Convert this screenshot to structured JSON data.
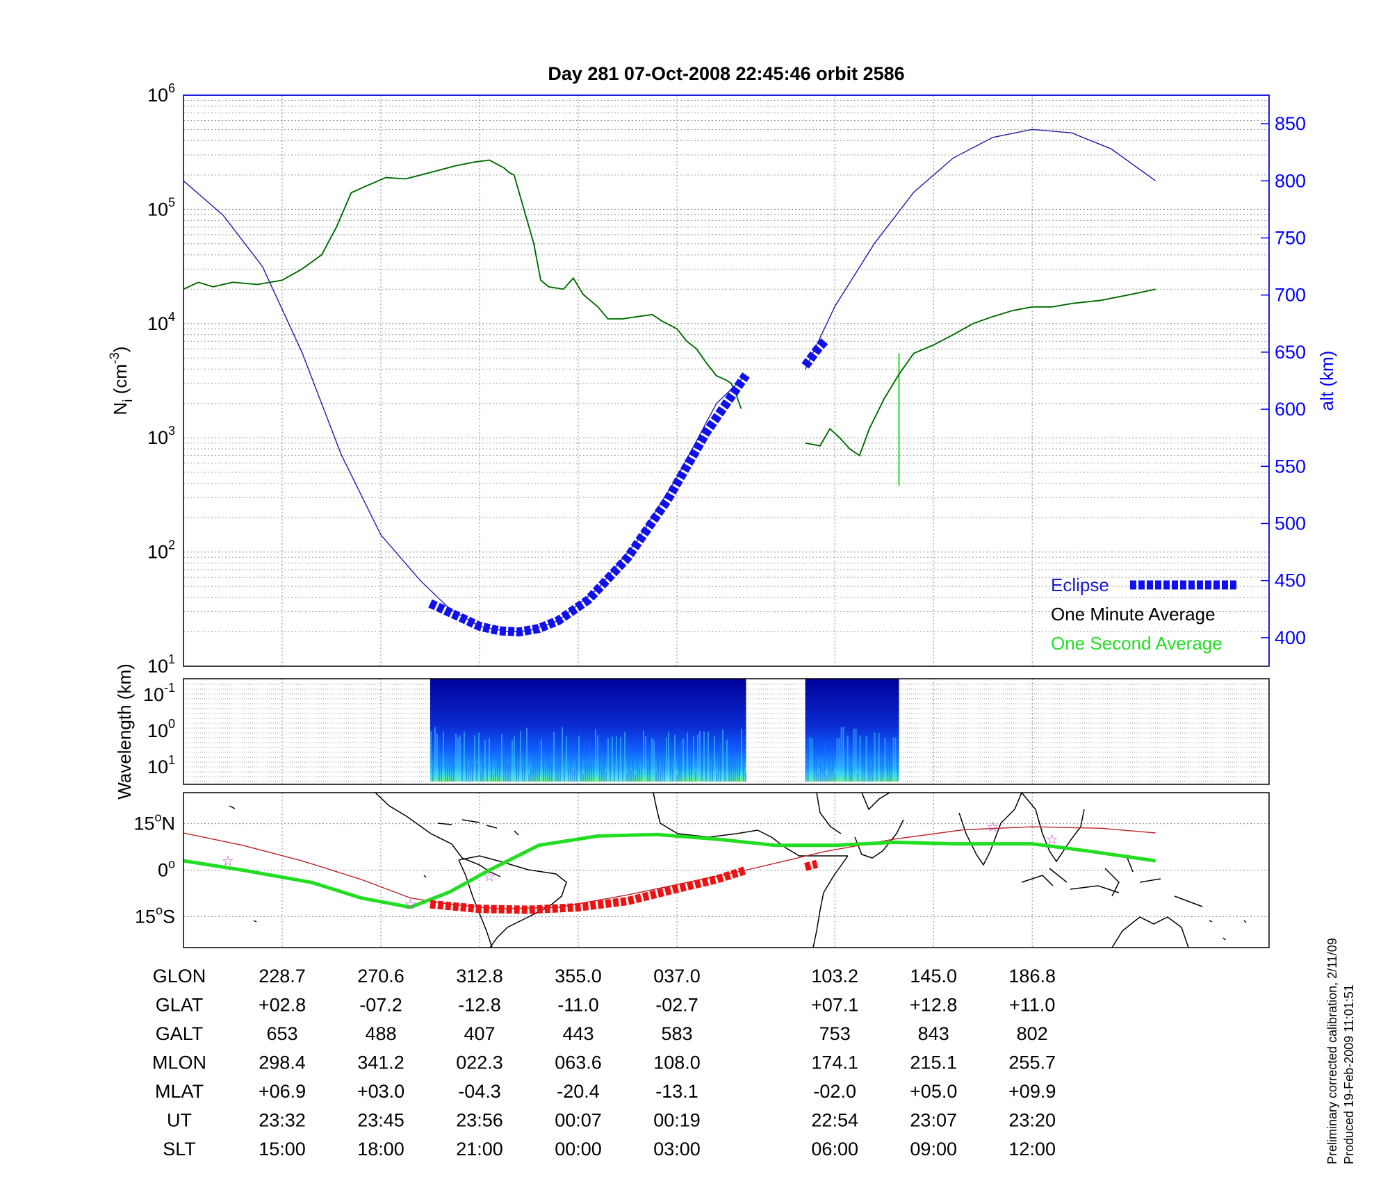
{
  "title": "Day 281  07-Oct-2008 22:45:46   orbit 2586",
  "colors": {
    "one_minute": "#0a5a0a",
    "one_second": "#22dd22",
    "altitude": "#1a1aaa",
    "eclipse": "#1010ee",
    "ground_track": "#22dd22",
    "magnetic_equator": "#bb2222",
    "ground_track_eclipse": "#ee1111",
    "star": "#cc33cc"
  },
  "chart_data": [
    {
      "type": "line",
      "ylabel": "N",
      "ylabel_sub": "i",
      "ylabel_unit": "(cm",
      "ylabel_sup": "-3",
      "ylabel_close": ")",
      "yscale": "log",
      "ylim": [
        10,
        1000000
      ],
      "y_ticks": [
        {
          "base": "10",
          "exp": "1"
        },
        {
          "base": "10",
          "exp": "2"
        },
        {
          "base": "10",
          "exp": "3"
        },
        {
          "base": "10",
          "exp": "4"
        },
        {
          "base": "10",
          "exp": "5"
        },
        {
          "base": "10",
          "exp": "6"
        }
      ],
      "y2label": "alt (km)",
      "y2lim": [
        375,
        875
      ],
      "y2_ticks": [
        "400",
        "450",
        "500",
        "550",
        "600",
        "650",
        "700",
        "750",
        "800",
        "850"
      ],
      "grid": true,
      "legend_position": "bottom-right",
      "legend": {
        "eclipse": "Eclipse",
        "one_minute": "One Minute Average",
        "one_second": "One Second Average"
      },
      "density_segments": [
        [
          [
            0,
            20000
          ],
          [
            0.15,
            23000
          ],
          [
            0.3,
            21000
          ],
          [
            0.5,
            23000
          ],
          [
            0.75,
            22000
          ],
          [
            1,
            24000
          ],
          [
            1.2,
            30000
          ],
          [
            1.4,
            40000
          ],
          [
            1.55,
            70000
          ],
          [
            1.7,
            140000
          ],
          [
            1.85,
            160000
          ],
          [
            2.05,
            190000
          ],
          [
            2.25,
            185000
          ],
          [
            2.5,
            210000
          ],
          [
            2.75,
            240000
          ],
          [
            2.95,
            260000
          ],
          [
            3.1,
            270000
          ],
          [
            3.25,
            230000
          ],
          [
            3.3,
            210000
          ],
          [
            3.35,
            200000
          ],
          [
            3.45,
            100000
          ],
          [
            3.55,
            50000
          ],
          [
            3.62,
            24000
          ],
          [
            3.7,
            21000
          ],
          [
            3.85,
            20000
          ],
          [
            3.95,
            25000
          ],
          [
            4.05,
            18000
          ],
          [
            4.2,
            14000
          ],
          [
            4.3,
            11000
          ],
          [
            4.45,
            11000
          ],
          [
            4.6,
            11500
          ],
          [
            4.75,
            12000
          ],
          [
            4.85,
            10500
          ],
          [
            5.0,
            9000
          ],
          [
            5.1,
            7000
          ],
          [
            5.2,
            6000
          ],
          [
            5.3,
            4500
          ],
          [
            5.4,
            3500
          ],
          [
            5.5,
            3200
          ],
          [
            5.55,
            3000
          ],
          [
            5.6,
            2400
          ],
          [
            5.65,
            1800
          ]
        ],
        [
          [
            6.3,
            900
          ],
          [
            6.45,
            850
          ],
          [
            6.55,
            1200
          ],
          [
            6.65,
            1000
          ],
          [
            6.75,
            800
          ],
          [
            6.85,
            700
          ],
          [
            6.95,
            1200
          ],
          [
            7.1,
            2200
          ],
          [
            7.25,
            3600
          ],
          [
            7.4,
            5500
          ],
          [
            7.6,
            6500
          ],
          [
            7.8,
            8000
          ],
          [
            8.0,
            10000
          ],
          [
            8.2,
            11500
          ],
          [
            8.4,
            13000
          ],
          [
            8.6,
            14000
          ],
          [
            8.8,
            14000
          ],
          [
            9.0,
            15000
          ],
          [
            9.3,
            16000
          ],
          [
            9.6,
            18000
          ],
          [
            9.85,
            20000
          ]
        ]
      ],
      "density_spike": {
        "x": 7.25,
        "from": 5500,
        "to": 380
      },
      "altitude_segments": [
        [
          [
            0,
            800
          ],
          [
            0.4,
            770
          ],
          [
            0.8,
            725
          ],
          [
            1.2,
            650
          ],
          [
            1.6,
            560
          ],
          [
            2.0,
            490
          ],
          [
            2.4,
            450
          ],
          [
            2.7,
            425
          ],
          [
            3.0,
            410
          ],
          [
            3.3,
            405
          ],
          [
            3.5,
            406
          ],
          [
            3.8,
            415
          ],
          [
            4.2,
            443
          ],
          [
            4.6,
            485
          ],
          [
            5.0,
            540
          ],
          [
            5.4,
            605
          ],
          [
            5.7,
            630
          ]
        ],
        [
          [
            6.3,
            635
          ],
          [
            6.6,
            690
          ],
          [
            7.0,
            745
          ],
          [
            7.4,
            790
          ],
          [
            7.8,
            820
          ],
          [
            8.2,
            838
          ],
          [
            8.6,
            845
          ],
          [
            9.0,
            842
          ],
          [
            9.4,
            828
          ],
          [
            9.85,
            800
          ]
        ]
      ],
      "eclipse_segments": [
        [
          [
            2.5,
            430
          ],
          [
            2.75,
            420
          ],
          [
            3.0,
            410
          ],
          [
            3.2,
            406
          ],
          [
            3.4,
            405
          ],
          [
            3.6,
            408
          ],
          [
            3.8,
            415
          ],
          [
            4.1,
            433
          ],
          [
            4.5,
            470
          ],
          [
            4.9,
            520
          ],
          [
            5.3,
            580
          ],
          [
            5.7,
            630
          ]
        ],
        [
          [
            6.3,
            638
          ],
          [
            6.42,
            652
          ],
          [
            6.5,
            660
          ]
        ]
      ]
    },
    {
      "type": "heatmap",
      "ylabel": "Wavelength (km)",
      "yscale": "log",
      "y_ticks": [
        {
          "base": "10",
          "exp": "-1"
        },
        {
          "base": "10",
          "exp": "0"
        },
        {
          "base": "10",
          "exp": "1"
        }
      ],
      "x_blocks": [
        [
          2.5,
          5.7
        ],
        [
          6.3,
          7.25
        ]
      ]
    },
    {
      "type": "line",
      "y_ticks": [
        {
          "value": "15",
          "deg": "o",
          "hemi": "N"
        },
        {
          "value": "0",
          "deg": "o",
          "hemi": ""
        },
        {
          "value": "15",
          "deg": "o",
          "hemi": "S"
        }
      ],
      "ylim": [
        -25,
        25
      ],
      "ground_track": [
        [
          0,
          3
        ],
        [
          0.6,
          0
        ],
        [
          1.3,
          -4
        ],
        [
          1.8,
          -9
        ],
        [
          2.3,
          -12
        ],
        [
          2.7,
          -7
        ],
        [
          3.1,
          0
        ],
        [
          3.6,
          8
        ],
        [
          4.2,
          11
        ],
        [
          4.8,
          11.5
        ],
        [
          5.4,
          10
        ],
        [
          6.0,
          8
        ],
        [
          6.6,
          8
        ],
        [
          7.2,
          9
        ],
        [
          7.8,
          8.5
        ],
        [
          8.6,
          8.5
        ],
        [
          9.2,
          6
        ],
        [
          9.85,
          3
        ]
      ],
      "magnetic_equator": [
        [
          0,
          12
        ],
        [
          0.6,
          8
        ],
        [
          1.2,
          3
        ],
        [
          1.8,
          -3
        ],
        [
          2.3,
          -9
        ],
        [
          2.7,
          -11
        ],
        [
          3.2,
          -12.5
        ],
        [
          3.8,
          -12
        ],
        [
          4.5,
          -8
        ],
        [
          5.1,
          -4
        ],
        [
          5.7,
          0
        ],
        [
          6.5,
          6
        ],
        [
          7.2,
          10
        ],
        [
          7.9,
          13
        ],
        [
          8.6,
          14
        ],
        [
          9.3,
          13.5
        ],
        [
          9.85,
          12
        ]
      ],
      "ground_track_eclipse": [
        [
          [
            2.5,
            -11
          ],
          [
            3.0,
            -12.5
          ],
          [
            3.5,
            -12.8
          ],
          [
            4.0,
            -12
          ],
          [
            4.5,
            -10
          ],
          [
            5.0,
            -6
          ],
          [
            5.4,
            -3
          ],
          [
            5.7,
            0
          ]
        ],
        [
          [
            6.3,
            1
          ],
          [
            6.42,
            2
          ]
        ]
      ],
      "stars": [
        [
          0.45,
          3
        ],
        [
          2.3,
          -11
        ],
        [
          3.1,
          -2
        ],
        [
          8.2,
          14
        ],
        [
          8.8,
          10
        ]
      ]
    }
  ],
  "table": {
    "rows": [
      {
        "label": "GLON",
        "values": [
          "228.7",
          "270.6",
          "312.8",
          "355.0",
          "037.0",
          "103.2",
          "145.0",
          "186.8"
        ]
      },
      {
        "label": "GLAT",
        "values": [
          "+02.8",
          "-07.2",
          "-12.8",
          "-11.0",
          "-02.7",
          "+07.1",
          "+12.8",
          "+11.0"
        ]
      },
      {
        "label": "GALT",
        "values": [
          "653",
          "488",
          "407",
          "443",
          "583",
          "753",
          "843",
          "802"
        ]
      },
      {
        "label": "MLON",
        "values": [
          "298.4",
          "341.2",
          "022.3",
          "063.6",
          "108.0",
          "174.1",
          "215.1",
          "255.7"
        ]
      },
      {
        "label": "MLAT",
        "values": [
          "+06.9",
          "+03.0",
          "-04.3",
          "-20.4",
          "-13.1",
          "-02.0",
          "+05.0",
          "+09.9"
        ]
      },
      {
        "label": "UT",
        "values": [
          "23:32",
          "23:45",
          "23:56",
          "00:07",
          "00:19",
          "22:54",
          "23:07",
          "23:20"
        ]
      },
      {
        "label": "SLT",
        "values": [
          "15:00",
          "18:00",
          "21:00",
          "00:00",
          "03:00",
          "06:00",
          "09:00",
          "12:00"
        ]
      }
    ]
  },
  "footer": {
    "line1": "Preliminary corrected calibration, 2/11/09",
    "line2": "Produced 19-Feb-2009 11:01:51"
  }
}
